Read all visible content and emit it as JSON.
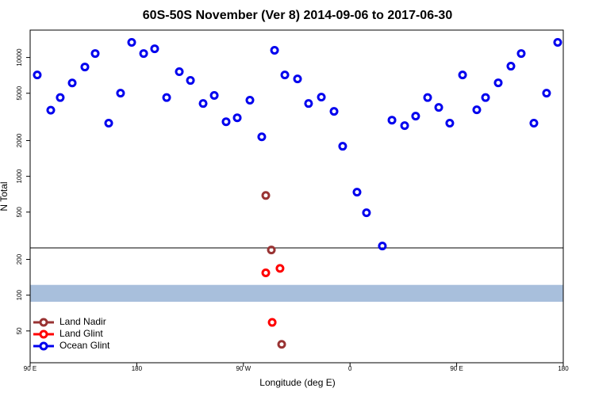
{
  "chart_data": {
    "type": "scatter",
    "title": "60S-50S November (Ver 8)   2014-09-06 to 2017-06-30",
    "xlabel": "Longitude (deg E)",
    "ylabel": "N Total",
    "log_y": true,
    "xlim": [
      90,
      540
    ],
    "ylim": [
      27,
      17000
    ],
    "xticks": [
      {
        "value": 90,
        "label": "90 E"
      },
      {
        "value": 180,
        "label": "180"
      },
      {
        "value": 270,
        "label": "90 W"
      },
      {
        "value": 360,
        "label": "0"
      },
      {
        "value": 450,
        "label": "90 E"
      },
      {
        "value": 540,
        "label": "180"
      }
    ],
    "yticks": [
      50,
      100,
      200,
      500,
      1000,
      2000,
      5000,
      10000
    ],
    "hline": 250,
    "band": [
      88,
      122
    ],
    "band_color": "#a8bfdc",
    "legend": "bottom-left",
    "series": [
      {
        "name": "Land Nadir",
        "color": "#993333",
        "x": [
          288.9,
          293.6,
          302.3
        ],
        "values": [
          690,
          240,
          38.6
        ]
      },
      {
        "name": "Land Glint",
        "color": "#ff0000",
        "x": [
          288.9,
          300.9,
          294.3
        ],
        "values": [
          154,
          168,
          59
        ]
      },
      {
        "name": "Ocean Glint",
        "color": "#0000ee",
        "x": [
          96.0,
          107.4,
          115.4,
          125.5,
          136.2,
          144.9,
          156.3,
          166.3,
          175.7,
          185.8,
          195.1,
          205.2,
          215.9,
          225.3,
          236.0,
          245.4,
          255.4,
          264.8,
          275.5,
          285.5,
          296.3,
          305.0,
          315.7,
          325.0,
          335.8,
          346.5,
          353.8,
          365.9,
          373.9,
          387.3,
          395.4,
          406.1,
          415.4,
          425.5,
          434.9,
          444.2,
          455.0,
          467.0,
          474.4,
          485.1,
          495.8,
          504.5,
          515.2,
          525.9,
          535.3
        ],
        "values": [
          7130,
          3600,
          4600,
          6100,
          8320,
          10800,
          2800,
          5010,
          13400,
          10800,
          11840,
          4600,
          7590,
          6410,
          4100,
          4790,
          2880,
          3110,
          4370,
          2150,
          11500,
          7130,
          6600,
          4100,
          4640,
          3520,
          1790,
          736,
          494,
          259,
          2970,
          2670,
          3210,
          4600,
          3800,
          2800,
          7130,
          3630,
          4600,
          6120,
          8450,
          10800,
          2800,
          5010,
          13400
        ]
      }
    ]
  }
}
